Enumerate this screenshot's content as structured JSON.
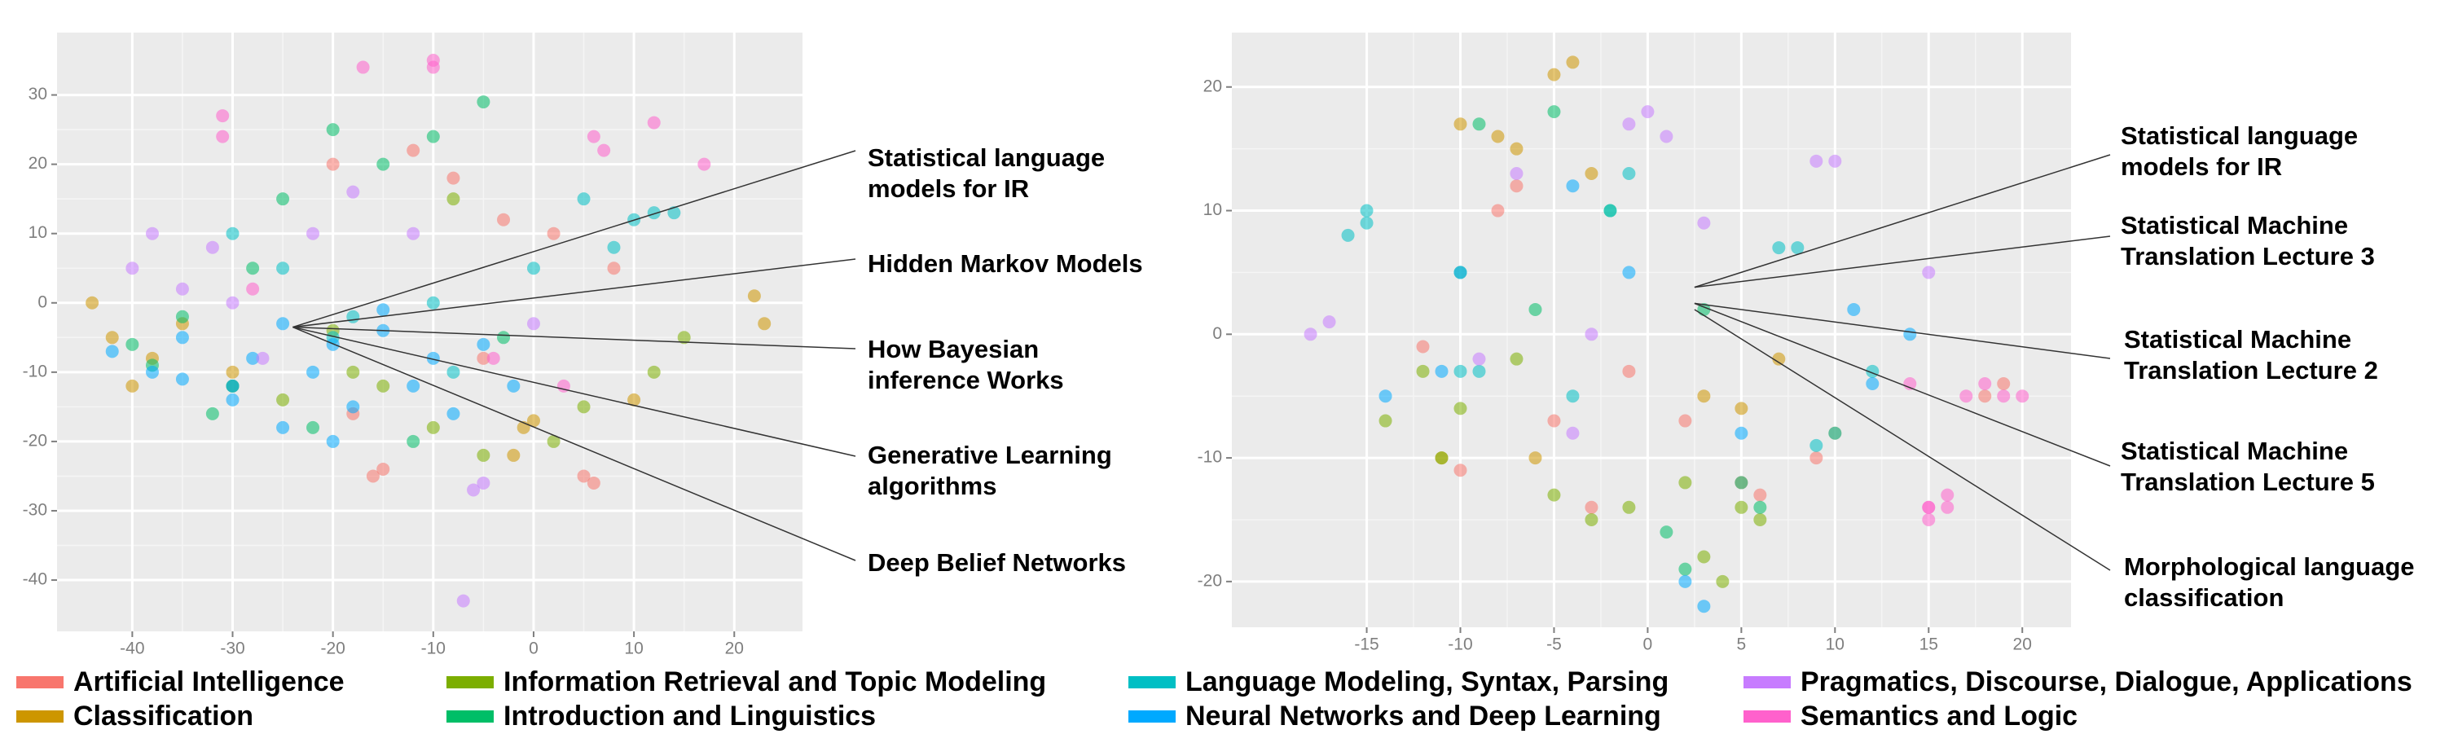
{
  "chart_data": [
    {
      "type": "scatter",
      "xlim": [
        -47.5,
        26.8
      ],
      "ylim": [
        -47.4,
        39
      ],
      "xticks": [
        -40,
        -30,
        -20,
        -10,
        0,
        10,
        20
      ],
      "yticks": [
        -40,
        -30,
        -20,
        -10,
        0,
        10,
        20,
        30
      ],
      "grid": true,
      "series": [
        {
          "name": "Artificial Intelligence",
          "color": "#F8766D",
          "x": [
            -15,
            -16,
            -8,
            -3,
            5,
            6,
            -12,
            -20,
            -5,
            8,
            2,
            -18
          ],
          "y": [
            -24,
            -25,
            18,
            12,
            -25,
            -26,
            22,
            20,
            -8,
            5,
            10,
            -16
          ]
        },
        {
          "name": "Classification",
          "color": "#CD9600",
          "x": [
            -44,
            -42,
            -38,
            -35,
            -40,
            -1,
            0,
            -2,
            22,
            23,
            -30,
            10
          ],
          "y": [
            0,
            -5,
            -8,
            -3,
            -12,
            -18,
            -17,
            -22,
            1,
            -3,
            -10,
            -14
          ]
        },
        {
          "name": "Information Retrieval and Topic Modeling",
          "color": "#7CAE00",
          "x": [
            -20,
            -18,
            -5,
            -10,
            -15,
            2,
            12,
            -25,
            -8,
            5,
            15,
            -30
          ],
          "y": [
            -4,
            -10,
            -22,
            -18,
            -12,
            -20,
            -10,
            -14,
            15,
            -15,
            -5,
            -12
          ]
        },
        {
          "name": "Introduction and Linguistics",
          "color": "#00BE67",
          "x": [
            -40,
            -38,
            -35,
            -30,
            -28,
            -25,
            -22,
            -20,
            -15,
            -10,
            -5,
            -32,
            -12,
            -3
          ],
          "y": [
            -6,
            -9,
            -2,
            -12,
            5,
            15,
            -18,
            25,
            20,
            24,
            29,
            -16,
            -20,
            -5
          ]
        },
        {
          "name": "Language Modeling, Syntax, Parsing",
          "color": "#00BFC4",
          "x": [
            -30,
            -25,
            -20,
            -10,
            0,
            5,
            10,
            12,
            14,
            -18,
            -8,
            8
          ],
          "y": [
            10,
            5,
            -5,
            0,
            5,
            15,
            12,
            13,
            13,
            -2,
            -10,
            8
          ]
        },
        {
          "name": "Neural Networks and Deep Learning",
          "color": "#00A9FF",
          "x": [
            -42,
            -38,
            -35,
            -30,
            -28,
            -25,
            -22,
            -20,
            -18,
            -15,
            -12,
            -10,
            -8,
            -5,
            -2,
            -25,
            -30,
            -20,
            -35,
            -15
          ],
          "y": [
            -7,
            -10,
            -5,
            -12,
            -8,
            -3,
            -10,
            -6,
            -15,
            -4,
            -12,
            -8,
            -16,
            -6,
            -12,
            -18,
            -14,
            -20,
            -11,
            -1
          ]
        },
        {
          "name": "Pragmatics, Discourse, Dialogue, Applications",
          "color": "#C77CFF",
          "x": [
            -38,
            -35,
            -32,
            -30,
            -27,
            -22,
            -18,
            -12,
            -6,
            -7,
            -5,
            0,
            -40
          ],
          "y": [
            10,
            2,
            8,
            0,
            -8,
            10,
            16,
            10,
            -27,
            -43,
            -26,
            -3,
            5
          ]
        },
        {
          "name": "Semantics and Logic",
          "color": "#FF61CC",
          "x": [
            -31,
            -31,
            -17,
            -10,
            -10,
            6,
            7,
            12,
            17,
            -28,
            -4,
            3
          ],
          "y": [
            24,
            27,
            34,
            35,
            34,
            24,
            22,
            26,
            20,
            2,
            -8,
            -12
          ]
        }
      ],
      "annotations": [
        {
          "text": "Statistical language models for IR",
          "x": -24,
          "y": -3.5
        },
        {
          "text": "Hidden Markov Models",
          "x": -24,
          "y": -3.5
        },
        {
          "text": "How Bayesian inference Works",
          "x": -24,
          "y": -3.5
        },
        {
          "text": "Generative Learning algorithms",
          "x": -24,
          "y": -3.5
        },
        {
          "text": "Deep Belief Networks",
          "x": -24,
          "y": -3.5
        }
      ]
    },
    {
      "type": "scatter",
      "xlim": [
        -22.2,
        22.6
      ],
      "ylim": [
        -23.7,
        24.4
      ],
      "xticks": [
        -15,
        -10,
        -5,
        0,
        5,
        10,
        15,
        20
      ],
      "yticks": [
        -20,
        -10,
        0,
        10,
        20
      ],
      "grid": true,
      "series": [
        {
          "x": [
            -8,
            -7,
            -12,
            -10,
            -5,
            5,
            6,
            9,
            -3,
            2,
            -1,
            18,
            19
          ],
          "y": [
            10,
            12,
            -1,
            -11,
            -7,
            -12,
            -13,
            -10,
            -14,
            -7,
            -3,
            -5,
            -4
          ]
        },
        {
          "x": [
            -5,
            -4,
            -8,
            -3,
            -10,
            -7,
            3,
            5,
            7,
            10,
            -6,
            -11
          ],
          "y": [
            21,
            22,
            16,
            13,
            17,
            15,
            -5,
            -6,
            -2,
            -8,
            -10,
            -10
          ]
        },
        {
          "x": [
            -12,
            -10,
            -14,
            -11,
            -5,
            -3,
            -1,
            2,
            3,
            4,
            6,
            5,
            -7
          ],
          "y": [
            -3,
            -6,
            -7,
            -10,
            -13,
            -15,
            -14,
            -12,
            -18,
            -20,
            -15,
            -14,
            -2
          ]
        },
        {
          "x": [
            -9,
            -5,
            -6,
            1,
            2,
            5,
            6,
            -2,
            3,
            -10
          ],
          "y": [
            17,
            18,
            2,
            -16,
            -19,
            -12,
            -14,
            10,
            2,
            5
          ]
        },
        {
          "x": [
            -15,
            -15,
            -16,
            -9,
            -10,
            -2,
            -1,
            -4,
            7,
            10,
            9,
            12,
            8
          ],
          "y": [
            9,
            10,
            8,
            -3,
            -3,
            10,
            13,
            -5,
            7,
            -8,
            -9,
            -3,
            7
          ]
        },
        {
          "x": [
            -10,
            -11,
            -1,
            2,
            3,
            5,
            -4,
            -14,
            11,
            12,
            14
          ],
          "y": [
            5,
            -3,
            5,
            -20,
            -22,
            -8,
            12,
            -5,
            2,
            -4,
            0
          ]
        },
        {
          "x": [
            -17,
            -18,
            -1,
            0,
            1,
            -3,
            -7,
            9,
            10,
            -9,
            15,
            -4,
            3
          ],
          "y": [
            1,
            0,
            17,
            18,
            16,
            0,
            13,
            14,
            14,
            -2,
            5,
            -8,
            9
          ]
        },
        {
          "x": [
            15,
            16,
            15,
            17,
            18,
            19,
            20,
            15,
            16,
            14
          ],
          "y": [
            -14,
            -13,
            -15,
            -5,
            -4,
            -5,
            -5,
            -14,
            -14,
            -4
          ]
        }
      ],
      "annotations": [
        {
          "text": "Statistical language models for IR",
          "x": 2.5,
          "y": 3.8
        },
        {
          "text": "Statistical Machine Translation Lecture 3",
          "x": 2.5,
          "y": 3.8
        },
        {
          "text": "Statistical Machine Translation Lecture 2",
          "x": 2.5,
          "y": 2.5
        },
        {
          "text": "Statistical Machine Translation Lecture 5",
          "x": 2.5,
          "y": 2.5
        },
        {
          "text": "Morphological language classification",
          "x": 2.5,
          "y": 2.0
        }
      ]
    }
  ]
}
